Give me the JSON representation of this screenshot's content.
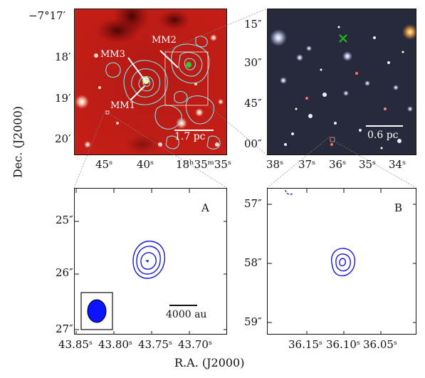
{
  "axes": {
    "y_label": "Dec. (J2000)",
    "x_label": "R.A. (J2000)"
  },
  "panel_tl": {
    "dec_ticks": [
      "−7°17′",
      "18′",
      "19′",
      "20′"
    ],
    "ra_ticks": [
      "45ˢ",
      "40ˢ",
      "18ʰ35ᵐ35ˢ"
    ],
    "labels": [
      "MM2",
      "MM3",
      "MM1"
    ],
    "scalebar": "1.7 pc"
  },
  "panel_tr": {
    "dec_ticks": [
      "15″",
      "30″",
      "45″",
      "00″"
    ],
    "ra_ticks": [
      "38ˢ",
      "37ˢ",
      "36ˢ",
      "35ˢ",
      "34ˢ"
    ],
    "scalebar": "0.6 pc"
  },
  "panel_a": {
    "letter": "A",
    "dec_ticks": [
      "25″",
      "26″",
      "27″"
    ],
    "ra_ticks": [
      "43.85ˢ",
      "43.80ˢ",
      "43.75ˢ",
      "43.70ˢ"
    ],
    "scalebar": "4000 au"
  },
  "panel_b": {
    "letter": "B",
    "dec_ticks": [
      "57″",
      "58″",
      "59″"
    ],
    "ra_ticks": [
      "36.15ˢ",
      "36.10ˢ",
      "36.05ˢ"
    ]
  },
  "colors": {
    "contour_cyan": "#7fe3e6",
    "contour_blue": "#1a1ad6",
    "beam_fill": "#0a14ff",
    "marker_green": "#22aa22"
  }
}
